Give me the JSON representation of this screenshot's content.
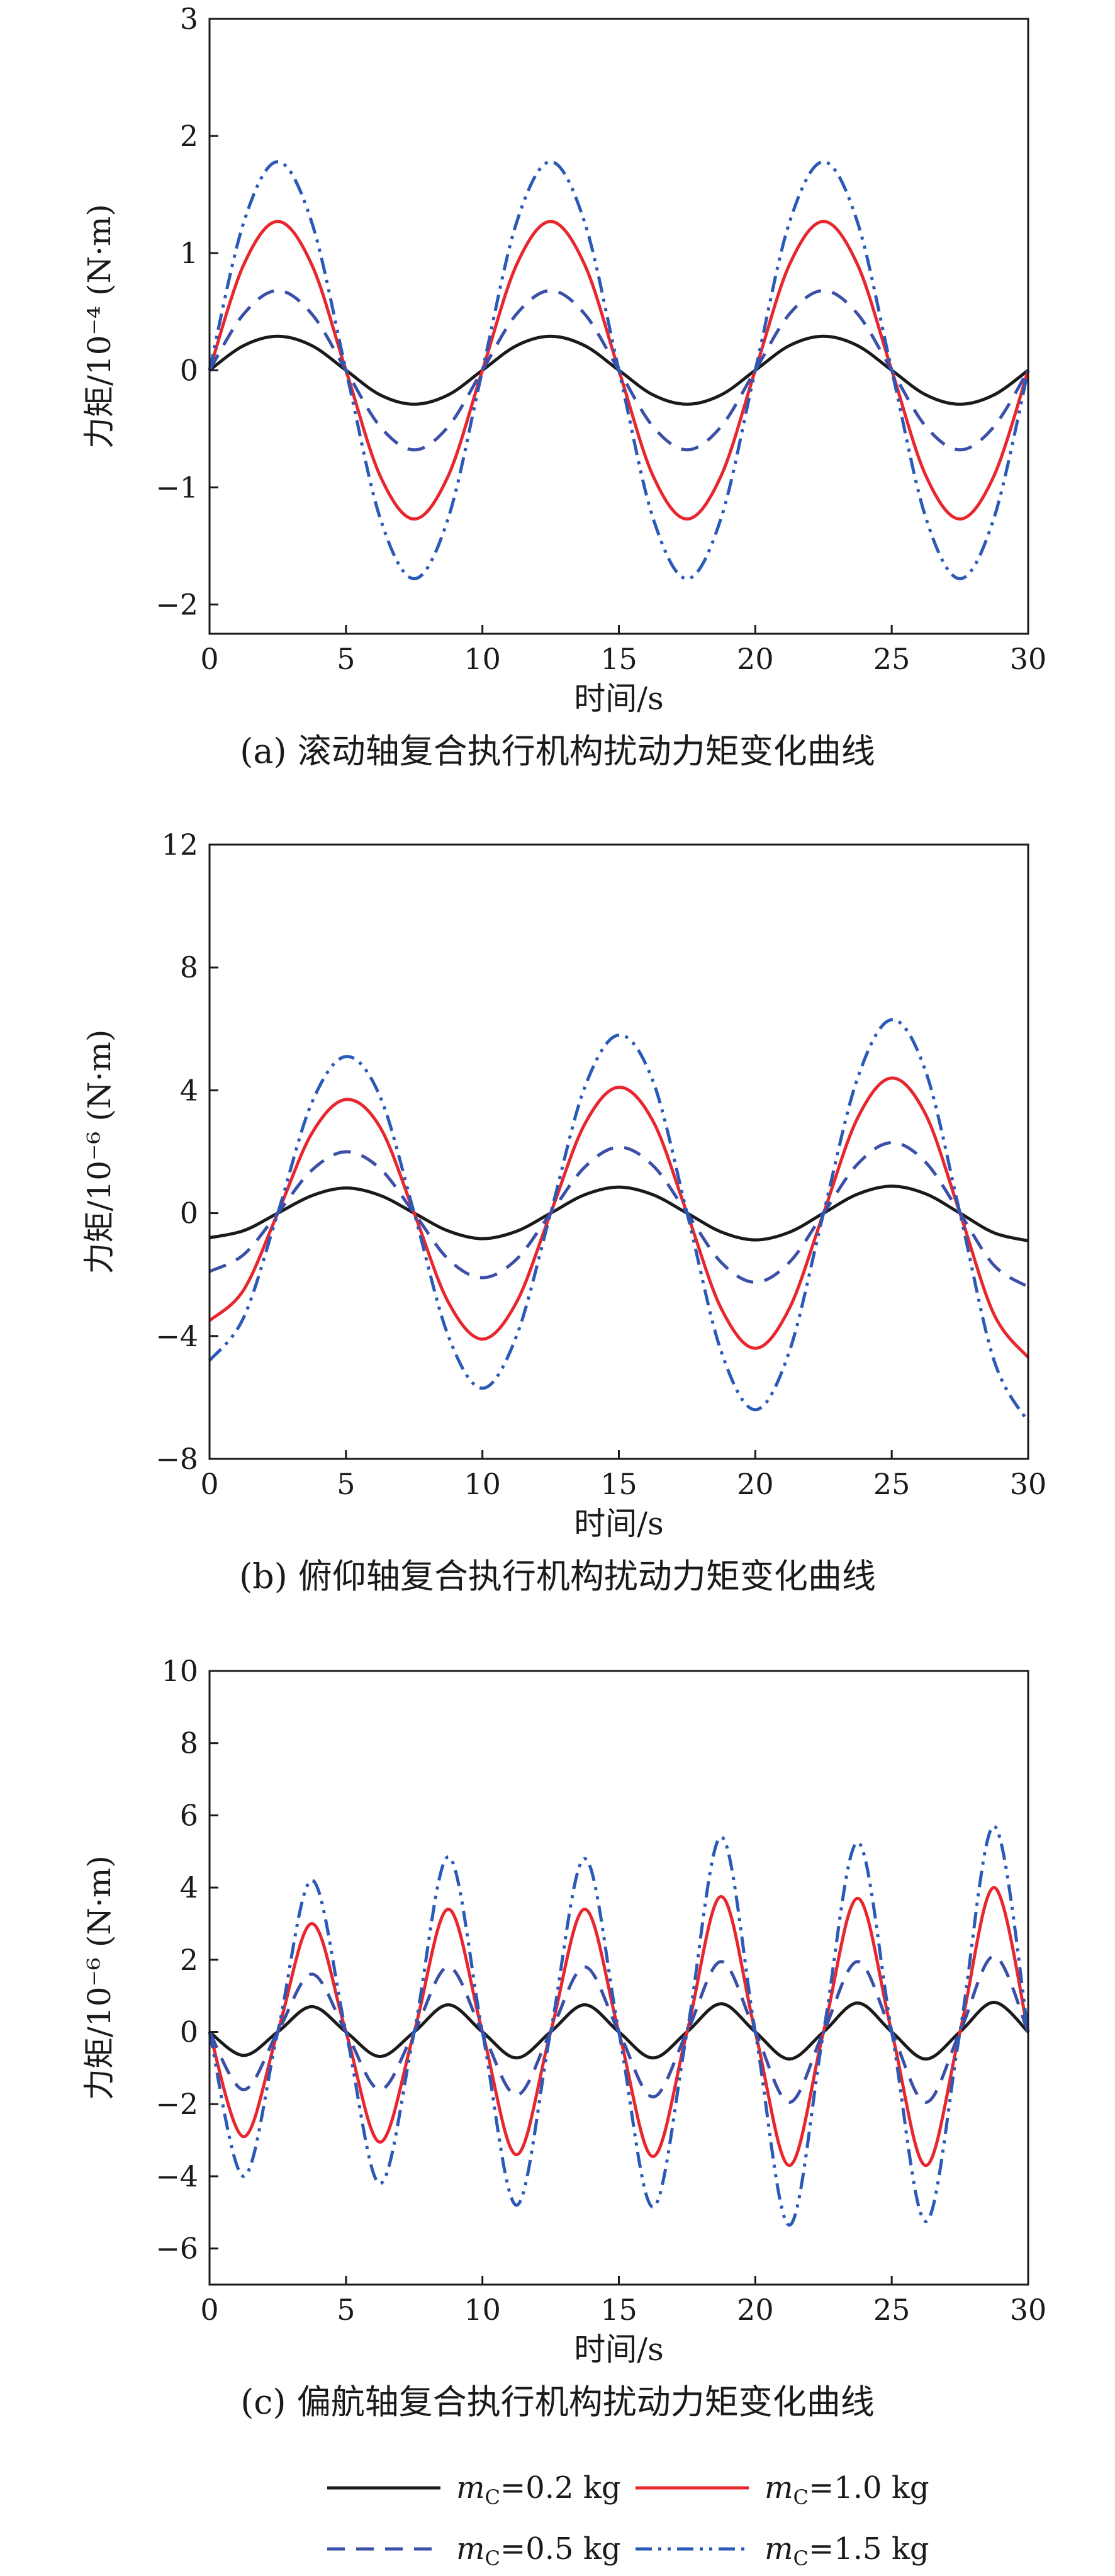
{
  "series_styles": [
    {
      "key": "m02",
      "color": "#1a1a1a",
      "dash": "solid"
    },
    {
      "key": "m10",
      "color": "#e8262d",
      "dash": "solid"
    },
    {
      "key": "m05",
      "color": "#3a4fa8",
      "dash": "dashed"
    },
    {
      "key": "m15",
      "color": "#2a5ab8",
      "dash": "dashdotdot"
    }
  ],
  "legend": {
    "entries": [
      {
        "sym": "m",
        "sub": "C",
        "text": "=0.2 kg"
      },
      {
        "sym": "m",
        "sub": "C",
        "text": "=1.0 kg"
      },
      {
        "sym": "m",
        "sub": "C",
        "text": "=0.5 kg"
      },
      {
        "sym": "m",
        "sub": "C",
        "text": "=1.5 kg"
      }
    ]
  },
  "chart_data": [
    {
      "type": "line",
      "caption": "(a) 滚动轴复合执行机构扰动力矩变化曲线",
      "xlabel": "时间/s",
      "ylabel": "力矩/10⁻⁴ (N·m)",
      "xlim": [
        0,
        30
      ],
      "ylim": [
        -2.25,
        3
      ],
      "xticks": [
        "0",
        "5",
        "10",
        "15",
        "20",
        "25",
        "30"
      ],
      "yticks": [
        "−2",
        "−1",
        "0",
        "1",
        "2",
        "3"
      ],
      "ytick_values": [
        -2,
        -1,
        0,
        1,
        2,
        3
      ],
      "x": [
        0,
        1.25,
        2.5,
        3.75,
        5,
        6.25,
        7.5,
        8.75,
        10,
        11.25,
        12.5,
        13.75,
        15,
        16.25,
        17.5,
        18.75,
        20,
        21.25,
        22.5,
        23.75,
        25,
        26.25,
        27.5,
        28.75,
        30
      ],
      "series": [
        {
          "values": [
            0,
            0.21,
            0.29,
            0.21,
            0,
            -0.21,
            -0.29,
            -0.21,
            0,
            0.21,
            0.29,
            0.21,
            0,
            -0.21,
            -0.29,
            -0.21,
            0,
            0.21,
            0.29,
            0.21,
            0,
            -0.21,
            -0.29,
            -0.21,
            0
          ]
        },
        {
          "values": [
            0,
            0.9,
            1.27,
            0.9,
            0,
            -0.9,
            -1.27,
            -0.9,
            0,
            0.9,
            1.27,
            0.9,
            0,
            -0.9,
            -1.27,
            -0.9,
            0,
            0.9,
            1.27,
            0.9,
            0,
            -0.9,
            -1.27,
            -0.9,
            0
          ]
        },
        {
          "values": [
            0,
            0.48,
            0.68,
            0.48,
            0,
            -0.48,
            -0.68,
            -0.48,
            0,
            0.48,
            0.68,
            0.48,
            0,
            -0.48,
            -0.68,
            -0.48,
            0,
            0.48,
            0.68,
            0.48,
            0,
            -0.48,
            -0.68,
            -0.48,
            0
          ]
        },
        {
          "values": [
            0,
            1.26,
            1.78,
            1.26,
            0,
            -1.26,
            -1.78,
            -1.26,
            0,
            1.26,
            1.78,
            1.26,
            0,
            -1.26,
            -1.78,
            -1.26,
            0,
            1.26,
            1.78,
            1.26,
            0,
            -1.26,
            -1.78,
            -1.26,
            0
          ]
        }
      ]
    },
    {
      "type": "line",
      "caption": "(b) 俯仰轴复合执行机构扰动力矩变化曲线",
      "xlabel": "时间/s",
      "ylabel": "力矩/10⁻⁶ (N·m)",
      "xlim": [
        0,
        30
      ],
      "ylim": [
        -8,
        12
      ],
      "xticks": [
        "0",
        "5",
        "10",
        "15",
        "20",
        "25",
        "30"
      ],
      "yticks": [
        "−8",
        "−4",
        "0",
        "4",
        "8",
        "12"
      ],
      "ytick_values": [
        -8,
        -4,
        0,
        4,
        8,
        12
      ],
      "x": [
        0,
        1.25,
        2.5,
        3.75,
        5,
        6.25,
        7.5,
        8.75,
        10,
        11.25,
        12.5,
        13.75,
        15,
        16.25,
        17.5,
        18.75,
        20,
        21.25,
        22.5,
        23.75,
        25,
        26.25,
        27.5,
        28.75,
        30
      ],
      "series": [
        {
          "values": [
            -0.8,
            -0.57,
            0,
            0.57,
            0.82,
            0.58,
            0,
            -0.58,
            -0.83,
            -0.59,
            0,
            0.6,
            0.85,
            0.6,
            0,
            -0.61,
            -0.87,
            -0.62,
            0,
            0.62,
            0.88,
            0.63,
            0,
            -0.64,
            -0.9
          ]
        },
        {
          "values": [
            -3.5,
            -2.5,
            0,
            2.6,
            3.7,
            2.8,
            0,
            -2.9,
            -4.1,
            -2.9,
            0,
            2.9,
            4.1,
            3.0,
            0,
            -3.1,
            -4.4,
            -3.1,
            0,
            3.1,
            4.4,
            3.2,
            0,
            -3.3,
            -4.7
          ]
        },
        {
          "values": [
            -1.9,
            -1.35,
            0,
            1.4,
            2.0,
            1.45,
            0,
            -1.5,
            -2.1,
            -1.5,
            0,
            1.5,
            2.15,
            1.55,
            0,
            -1.6,
            -2.25,
            -1.6,
            0,
            1.6,
            2.3,
            1.65,
            0,
            -1.7,
            -2.4
          ]
        },
        {
          "values": [
            -4.8,
            -3.4,
            0,
            3.6,
            5.1,
            3.8,
            0,
            -4.0,
            -5.7,
            -4.0,
            0,
            4.1,
            5.8,
            4.3,
            0,
            -4.5,
            -6.4,
            -4.5,
            0,
            4.4,
            6.3,
            4.6,
            0,
            -4.8,
            -6.8
          ]
        }
      ]
    },
    {
      "type": "line",
      "caption": "(c) 偏航轴复合执行机构扰动力矩变化曲线",
      "xlabel": "时间/s",
      "ylabel": "力矩/10⁻⁶ (N·m)",
      "xlim": [
        0,
        30
      ],
      "ylim": [
        -7,
        10
      ],
      "xticks": [
        "0",
        "5",
        "10",
        "15",
        "20",
        "25",
        "30"
      ],
      "yticks": [
        "−6",
        "−4",
        "−2",
        "0",
        "2",
        "4",
        "6",
        "8",
        "10"
      ],
      "ytick_values": [
        -6,
        -4,
        -2,
        0,
        2,
        4,
        6,
        8,
        10
      ],
      "x": [
        0,
        1.25,
        2.5,
        3.75,
        5,
        6.25,
        7.5,
        8.75,
        10,
        11.25,
        12.5,
        13.75,
        15,
        16.25,
        17.5,
        18.75,
        20,
        21.25,
        22.5,
        23.75,
        25,
        26.25,
        27.5,
        28.75,
        30
      ],
      "series": [
        {
          "values": [
            0,
            -0.65,
            0,
            0.7,
            0,
            -0.68,
            0,
            0.75,
            0,
            -0.72,
            0,
            0.75,
            0,
            -0.72,
            0,
            0.78,
            0,
            -0.75,
            0,
            0.8,
            0,
            -0.75,
            0,
            0.82,
            0
          ]
        },
        {
          "values": [
            0,
            -2.9,
            0,
            3.0,
            0,
            -3.05,
            0,
            3.4,
            0,
            -3.4,
            0,
            3.4,
            0,
            -3.45,
            0,
            3.75,
            0,
            -3.7,
            0,
            3.7,
            0,
            -3.7,
            0,
            4.0,
            0
          ]
        },
        {
          "values": [
            0,
            -1.6,
            0,
            1.6,
            0,
            -1.6,
            0,
            1.8,
            0,
            -1.75,
            0,
            1.8,
            0,
            -1.8,
            0,
            1.95,
            0,
            -1.95,
            0,
            1.95,
            0,
            -1.95,
            0,
            2.1,
            0
          ]
        },
        {
          "values": [
            0,
            -4.0,
            0,
            4.2,
            0,
            -4.2,
            0,
            4.85,
            0,
            -4.8,
            0,
            4.8,
            0,
            -4.85,
            0,
            5.4,
            0,
            -5.35,
            0,
            5.25,
            0,
            -5.25,
            0,
            5.7,
            0
          ]
        }
      ]
    }
  ]
}
